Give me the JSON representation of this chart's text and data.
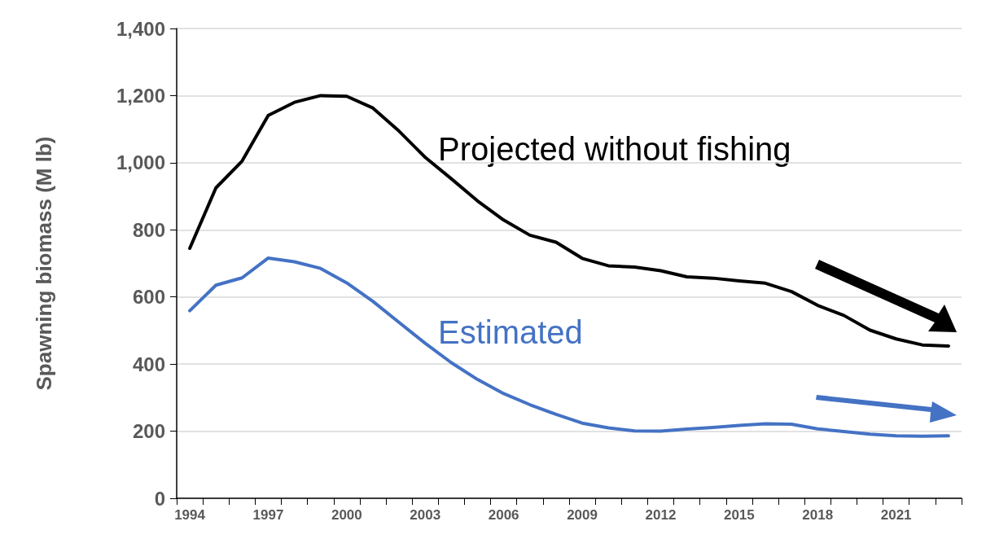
{
  "chart_data": {
    "type": "line",
    "ylabel": "Spawning biomass (M lb)",
    "categories": [
      "1994",
      null,
      null,
      "1997",
      null,
      null,
      "2000",
      null,
      null,
      "2003",
      null,
      null,
      "2006",
      null,
      null,
      "2009",
      null,
      null,
      "2012",
      null,
      null,
      "2015",
      null,
      null,
      "2018",
      null,
      null,
      "2021",
      null,
      null
    ],
    "series": [
      {
        "name": "Projected without fishing",
        "color": "#000000",
        "values": [
          745,
          925,
          1005,
          1141,
          1180,
          1200,
          1198,
          1163,
          1094,
          1016,
          952,
          886,
          829,
          784,
          763,
          715,
          693,
          689,
          678,
          660,
          656,
          648,
          641,
          616,
          575,
          545,
          501,
          475,
          457,
          454
        ]
      },
      {
        "name": "Estimated",
        "color": "#4472c4",
        "values": [
          559,
          635,
          657,
          716,
          705,
          685,
          642,
          587,
          524,
          462,
          404,
          354,
          312,
          279,
          250,
          224,
          210,
          201,
          200,
          206,
          211,
          217,
          222,
          221,
          207,
          199,
          191,
          186,
          185,
          186
        ]
      }
    ],
    "ylim": [
      0,
      1400
    ],
    "yticks": [
      0,
      200,
      400,
      600,
      800,
      {
        "value": 1000,
        "label": "1,000"
      },
      {
        "value": 1200,
        "label": "1,200"
      },
      {
        "value": 1400,
        "label": "1,400"
      }
    ],
    "grid": "y",
    "legend": false,
    "marker": "none",
    "line_style": "solid"
  }
}
